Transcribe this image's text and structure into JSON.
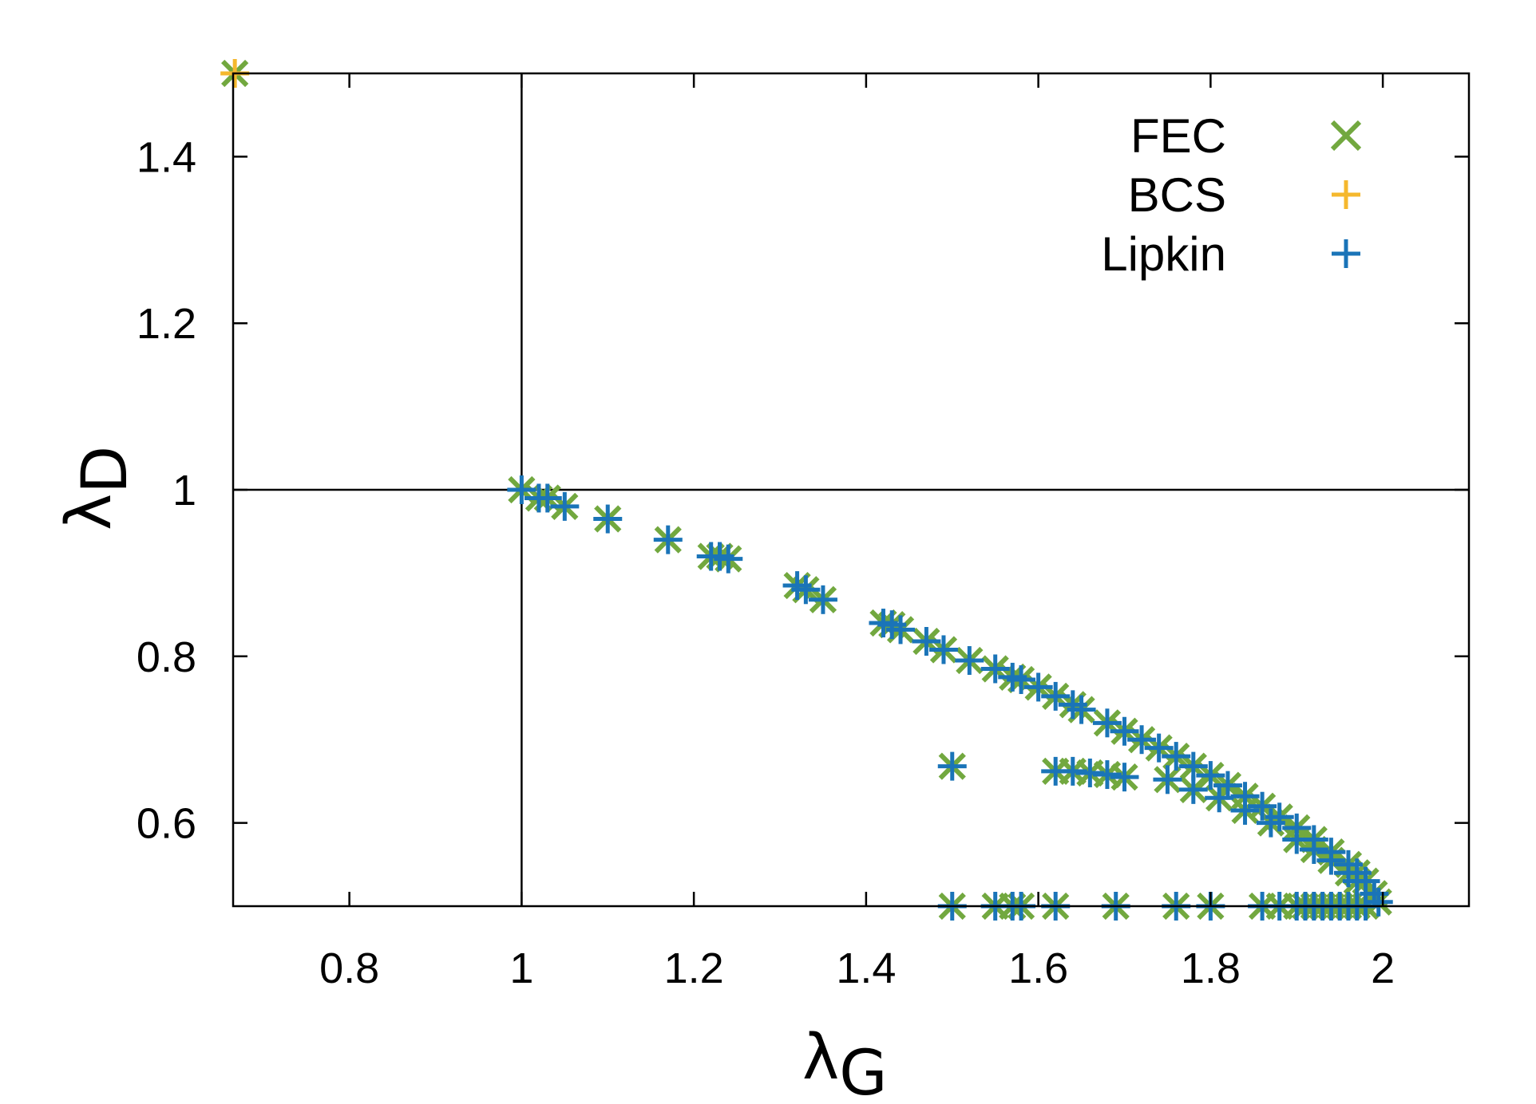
{
  "chart_data": {
    "type": "scatter",
    "xlabel": "λ",
    "xlabel_sub": "G",
    "ylabel": "λ",
    "ylabel_sub": "D",
    "xlim": [
      0.665,
      2.1
    ],
    "ylim": [
      0.5,
      1.5
    ],
    "x_ticks": [
      0.8,
      1,
      1.2,
      1.4,
      1.6,
      1.8,
      2
    ],
    "x_tick_labels": [
      "0.8",
      "1",
      "1.2",
      "1.4",
      "1.6",
      "1.8",
      "2"
    ],
    "y_ticks": [
      0.6,
      0.8,
      1,
      1.2,
      1.4
    ],
    "y_tick_labels": [
      "0.6",
      "0.8",
      "1",
      "1.2",
      "1.4"
    ],
    "reference_lines": {
      "x": 1,
      "y": 1
    },
    "grid": false,
    "legend_position": "top-right",
    "series": [
      {
        "name": "FEC",
        "marker": "x",
        "color": "#72a83f",
        "points": [
          [
            0.667,
            1.5
          ],
          [
            1.0,
            1.0
          ],
          [
            1.02,
            0.99
          ],
          [
            1.03,
            0.99
          ],
          [
            1.05,
            0.98
          ],
          [
            1.1,
            0.965
          ],
          [
            1.17,
            0.94
          ],
          [
            1.22,
            0.92
          ],
          [
            1.23,
            0.92
          ],
          [
            1.24,
            0.917
          ],
          [
            1.32,
            0.885
          ],
          [
            1.33,
            0.88
          ],
          [
            1.35,
            0.868
          ],
          [
            1.42,
            0.84
          ],
          [
            1.43,
            0.838
          ],
          [
            1.44,
            0.832
          ],
          [
            1.47,
            0.818
          ],
          [
            1.49,
            0.808
          ],
          [
            1.52,
            0.795
          ],
          [
            1.55,
            0.785
          ],
          [
            1.57,
            0.775
          ],
          [
            1.58,
            0.772
          ],
          [
            1.6,
            0.763
          ],
          [
            1.62,
            0.752
          ],
          [
            1.64,
            0.742
          ],
          [
            1.65,
            0.736
          ],
          [
            1.68,
            0.72
          ],
          [
            1.7,
            0.71
          ],
          [
            1.72,
            0.7
          ],
          [
            1.74,
            0.69
          ],
          [
            1.76,
            0.68
          ],
          [
            1.78,
            0.668
          ],
          [
            1.8,
            0.657
          ],
          [
            1.82,
            0.645
          ],
          [
            1.84,
            0.632
          ],
          [
            1.86,
            0.62
          ],
          [
            1.88,
            0.607
          ],
          [
            1.9,
            0.594
          ],
          [
            1.92,
            0.58
          ],
          [
            1.94,
            0.565
          ],
          [
            1.96,
            0.55
          ],
          [
            1.97,
            0.54
          ],
          [
            1.98,
            0.53
          ],
          [
            1.99,
            0.515
          ],
          [
            1.995,
            0.505
          ],
          [
            1.5,
            0.668
          ],
          [
            1.62,
            0.662
          ],
          [
            1.64,
            0.662
          ],
          [
            1.66,
            0.66
          ],
          [
            1.68,
            0.658
          ],
          [
            1.7,
            0.655
          ],
          [
            1.75,
            0.652
          ],
          [
            1.78,
            0.64
          ],
          [
            1.81,
            0.63
          ],
          [
            1.84,
            0.615
          ],
          [
            1.87,
            0.6
          ],
          [
            1.9,
            0.58
          ],
          [
            1.92,
            0.568
          ],
          [
            1.94,
            0.555
          ],
          [
            1.96,
            0.54
          ],
          [
            1.97,
            0.53
          ],
          [
            1.5,
            0.5
          ],
          [
            1.55,
            0.5
          ],
          [
            1.57,
            0.5
          ],
          [
            1.58,
            0.5
          ],
          [
            1.62,
            0.5
          ],
          [
            1.69,
            0.5
          ],
          [
            1.76,
            0.5
          ],
          [
            1.8,
            0.5
          ],
          [
            1.86,
            0.5
          ],
          [
            1.88,
            0.5
          ],
          [
            1.9,
            0.5
          ],
          [
            1.91,
            0.5
          ],
          [
            1.92,
            0.5
          ],
          [
            1.93,
            0.5
          ],
          [
            1.94,
            0.5
          ],
          [
            1.95,
            0.5
          ],
          [
            1.96,
            0.5
          ],
          [
            1.97,
            0.5
          ],
          [
            1.98,
            0.5
          ]
        ]
      },
      {
        "name": "BCS",
        "marker": "+",
        "color": "#f5b82e",
        "points": [
          [
            0.667,
            1.5
          ]
        ]
      },
      {
        "name": "Lipkin",
        "marker": "+",
        "color": "#1a74b8",
        "points": [
          [
            1.0,
            1.0
          ],
          [
            1.02,
            0.99
          ],
          [
            1.03,
            0.99
          ],
          [
            1.05,
            0.98
          ],
          [
            1.1,
            0.965
          ],
          [
            1.17,
            0.94
          ],
          [
            1.22,
            0.92
          ],
          [
            1.23,
            0.92
          ],
          [
            1.24,
            0.917
          ],
          [
            1.32,
            0.885
          ],
          [
            1.33,
            0.88
          ],
          [
            1.35,
            0.868
          ],
          [
            1.42,
            0.84
          ],
          [
            1.43,
            0.838
          ],
          [
            1.44,
            0.832
          ],
          [
            1.47,
            0.818
          ],
          [
            1.49,
            0.808
          ],
          [
            1.52,
            0.795
          ],
          [
            1.55,
            0.785
          ],
          [
            1.57,
            0.775
          ],
          [
            1.58,
            0.772
          ],
          [
            1.6,
            0.763
          ],
          [
            1.62,
            0.752
          ],
          [
            1.64,
            0.742
          ],
          [
            1.65,
            0.736
          ],
          [
            1.68,
            0.72
          ],
          [
            1.7,
            0.71
          ],
          [
            1.72,
            0.7
          ],
          [
            1.74,
            0.69
          ],
          [
            1.76,
            0.68
          ],
          [
            1.78,
            0.668
          ],
          [
            1.8,
            0.657
          ],
          [
            1.82,
            0.645
          ],
          [
            1.84,
            0.632
          ],
          [
            1.86,
            0.62
          ],
          [
            1.88,
            0.607
          ],
          [
            1.9,
            0.594
          ],
          [
            1.92,
            0.58
          ],
          [
            1.94,
            0.565
          ],
          [
            1.96,
            0.55
          ],
          [
            1.97,
            0.54
          ],
          [
            1.98,
            0.53
          ],
          [
            1.99,
            0.515
          ],
          [
            1.995,
            0.505
          ],
          [
            1.5,
            0.668
          ],
          [
            1.62,
            0.662
          ],
          [
            1.64,
            0.662
          ],
          [
            1.66,
            0.66
          ],
          [
            1.68,
            0.658
          ],
          [
            1.7,
            0.655
          ],
          [
            1.75,
            0.652
          ],
          [
            1.78,
            0.64
          ],
          [
            1.81,
            0.63
          ],
          [
            1.84,
            0.615
          ],
          [
            1.87,
            0.6
          ],
          [
            1.9,
            0.58
          ],
          [
            1.92,
            0.568
          ],
          [
            1.94,
            0.555
          ],
          [
            1.96,
            0.54
          ],
          [
            1.97,
            0.53
          ],
          [
            1.5,
            0.5
          ],
          [
            1.55,
            0.5
          ],
          [
            1.57,
            0.5
          ],
          [
            1.58,
            0.5
          ],
          [
            1.62,
            0.5
          ],
          [
            1.69,
            0.5
          ],
          [
            1.76,
            0.5
          ],
          [
            1.8,
            0.5
          ],
          [
            1.86,
            0.5
          ],
          [
            1.88,
            0.5
          ],
          [
            1.9,
            0.5
          ],
          [
            1.91,
            0.5
          ],
          [
            1.92,
            0.5
          ],
          [
            1.93,
            0.5
          ],
          [
            1.94,
            0.5
          ],
          [
            1.95,
            0.5
          ],
          [
            1.96,
            0.5
          ],
          [
            1.97,
            0.5
          ],
          [
            1.98,
            0.5
          ]
        ]
      }
    ]
  }
}
